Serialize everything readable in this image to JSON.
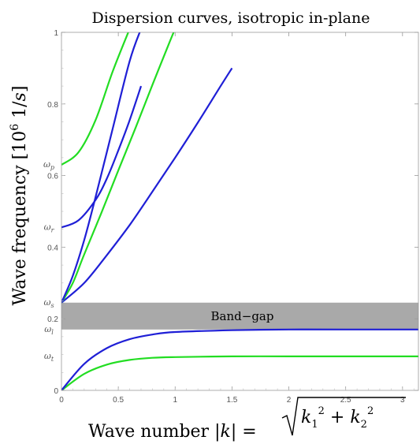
{
  "chart_data": {
    "type": "line",
    "title": "Dispersion curves, isotropic in-plane",
    "xlabel": "Wave number |k| = √(k₁² + k₂²)",
    "ylabel": "Wave frequency [10⁶ 1/s]",
    "xlim": [
      0,
      3.14
    ],
    "ylim": [
      0,
      1
    ],
    "xticks": [
      {
        "value": 0,
        "label": "0"
      },
      {
        "value": 0.5,
        "label": "0.5"
      },
      {
        "value": 1,
        "label": "1"
      },
      {
        "value": 1.5,
        "label": "1.5"
      },
      {
        "value": 2,
        "label": "2"
      },
      {
        "value": 2.5,
        "label": "2.5"
      },
      {
        "value": 3,
        "label": "3"
      }
    ],
    "yticks": [
      {
        "value": 0,
        "label": "0"
      },
      {
        "value": 0.2,
        "label": "0.2"
      },
      {
        "value": 0.4,
        "label": "0.4"
      },
      {
        "value": 0.6,
        "label": "0.6"
      },
      {
        "value": 0.8,
        "label": "0.8"
      },
      {
        "value": 1,
        "label": "1"
      }
    ],
    "omega_labels": [
      {
        "name": "ω_t",
        "sub": "t",
        "value": 0.095
      },
      {
        "name": "ω_l",
        "sub": "l",
        "value": 0.17
      },
      {
        "name": "ω_s",
        "sub": "s",
        "value": 0.245
      },
      {
        "name": "ω_r",
        "sub": "r",
        "value": 0.455
      },
      {
        "name": "ω_p",
        "sub": "p",
        "value": 0.63
      }
    ],
    "band_gap": {
      "label": "Band−gap",
      "from": 0.17,
      "to": 0.245,
      "color": "#a9a9a9"
    },
    "colors": {
      "green": "#22dd22",
      "blue": "#1f1fd6"
    },
    "series": [
      {
        "color": "#22dd22",
        "x": [
          0,
          0.2,
          0.4,
          0.6,
          0.8,
          1.0,
          1.5,
          2.0,
          2.5,
          3.14
        ],
        "y": [
          0,
          0.046,
          0.072,
          0.085,
          0.091,
          0.093,
          0.095,
          0.095,
          0.095,
          0.095
        ]
      },
      {
        "color": "#1f1fd6",
        "x": [
          0,
          0.2,
          0.4,
          0.6,
          0.8,
          1.0,
          1.5,
          2.0,
          2.5,
          3.14
        ],
        "y": [
          0,
          0.074,
          0.118,
          0.143,
          0.156,
          0.163,
          0.168,
          0.17,
          0.17,
          0.17
        ]
      },
      {
        "color": "#1f1fd6",
        "x": [
          0,
          0.2,
          0.4,
          0.6,
          0.8,
          1.0,
          1.2,
          1.4,
          1.5
        ],
        "y": [
          0.245,
          0.3,
          0.378,
          0.462,
          0.555,
          0.65,
          0.748,
          0.85,
          0.9
        ]
      },
      {
        "color": "#22dd22",
        "x": [
          0,
          0.1,
          0.2,
          0.35,
          0.5,
          0.65,
          0.8,
          0.95,
          1.0
        ],
        "y": [
          0.245,
          0.3,
          0.38,
          0.495,
          0.614,
          0.732,
          0.853,
          0.972,
          1.01
        ]
      },
      {
        "color": "#1f1fd6",
        "x": [
          0,
          0.1,
          0.2,
          0.3,
          0.45,
          0.6,
          0.7
        ],
        "y": [
          0.245,
          0.32,
          0.42,
          0.54,
          0.73,
          0.92,
          1.01
        ]
      },
      {
        "color": "#1f1fd6",
        "x": [
          0,
          0.15,
          0.3,
          0.4,
          0.5,
          0.6,
          0.7
        ],
        "y": [
          0.455,
          0.475,
          0.532,
          0.592,
          0.67,
          0.755,
          0.85
        ]
      },
      {
        "color": "#22dd22",
        "x": [
          0,
          0.15,
          0.3,
          0.45,
          0.6
        ],
        "y": [
          0.63,
          0.665,
          0.755,
          0.89,
          1.01
        ]
      }
    ]
  }
}
